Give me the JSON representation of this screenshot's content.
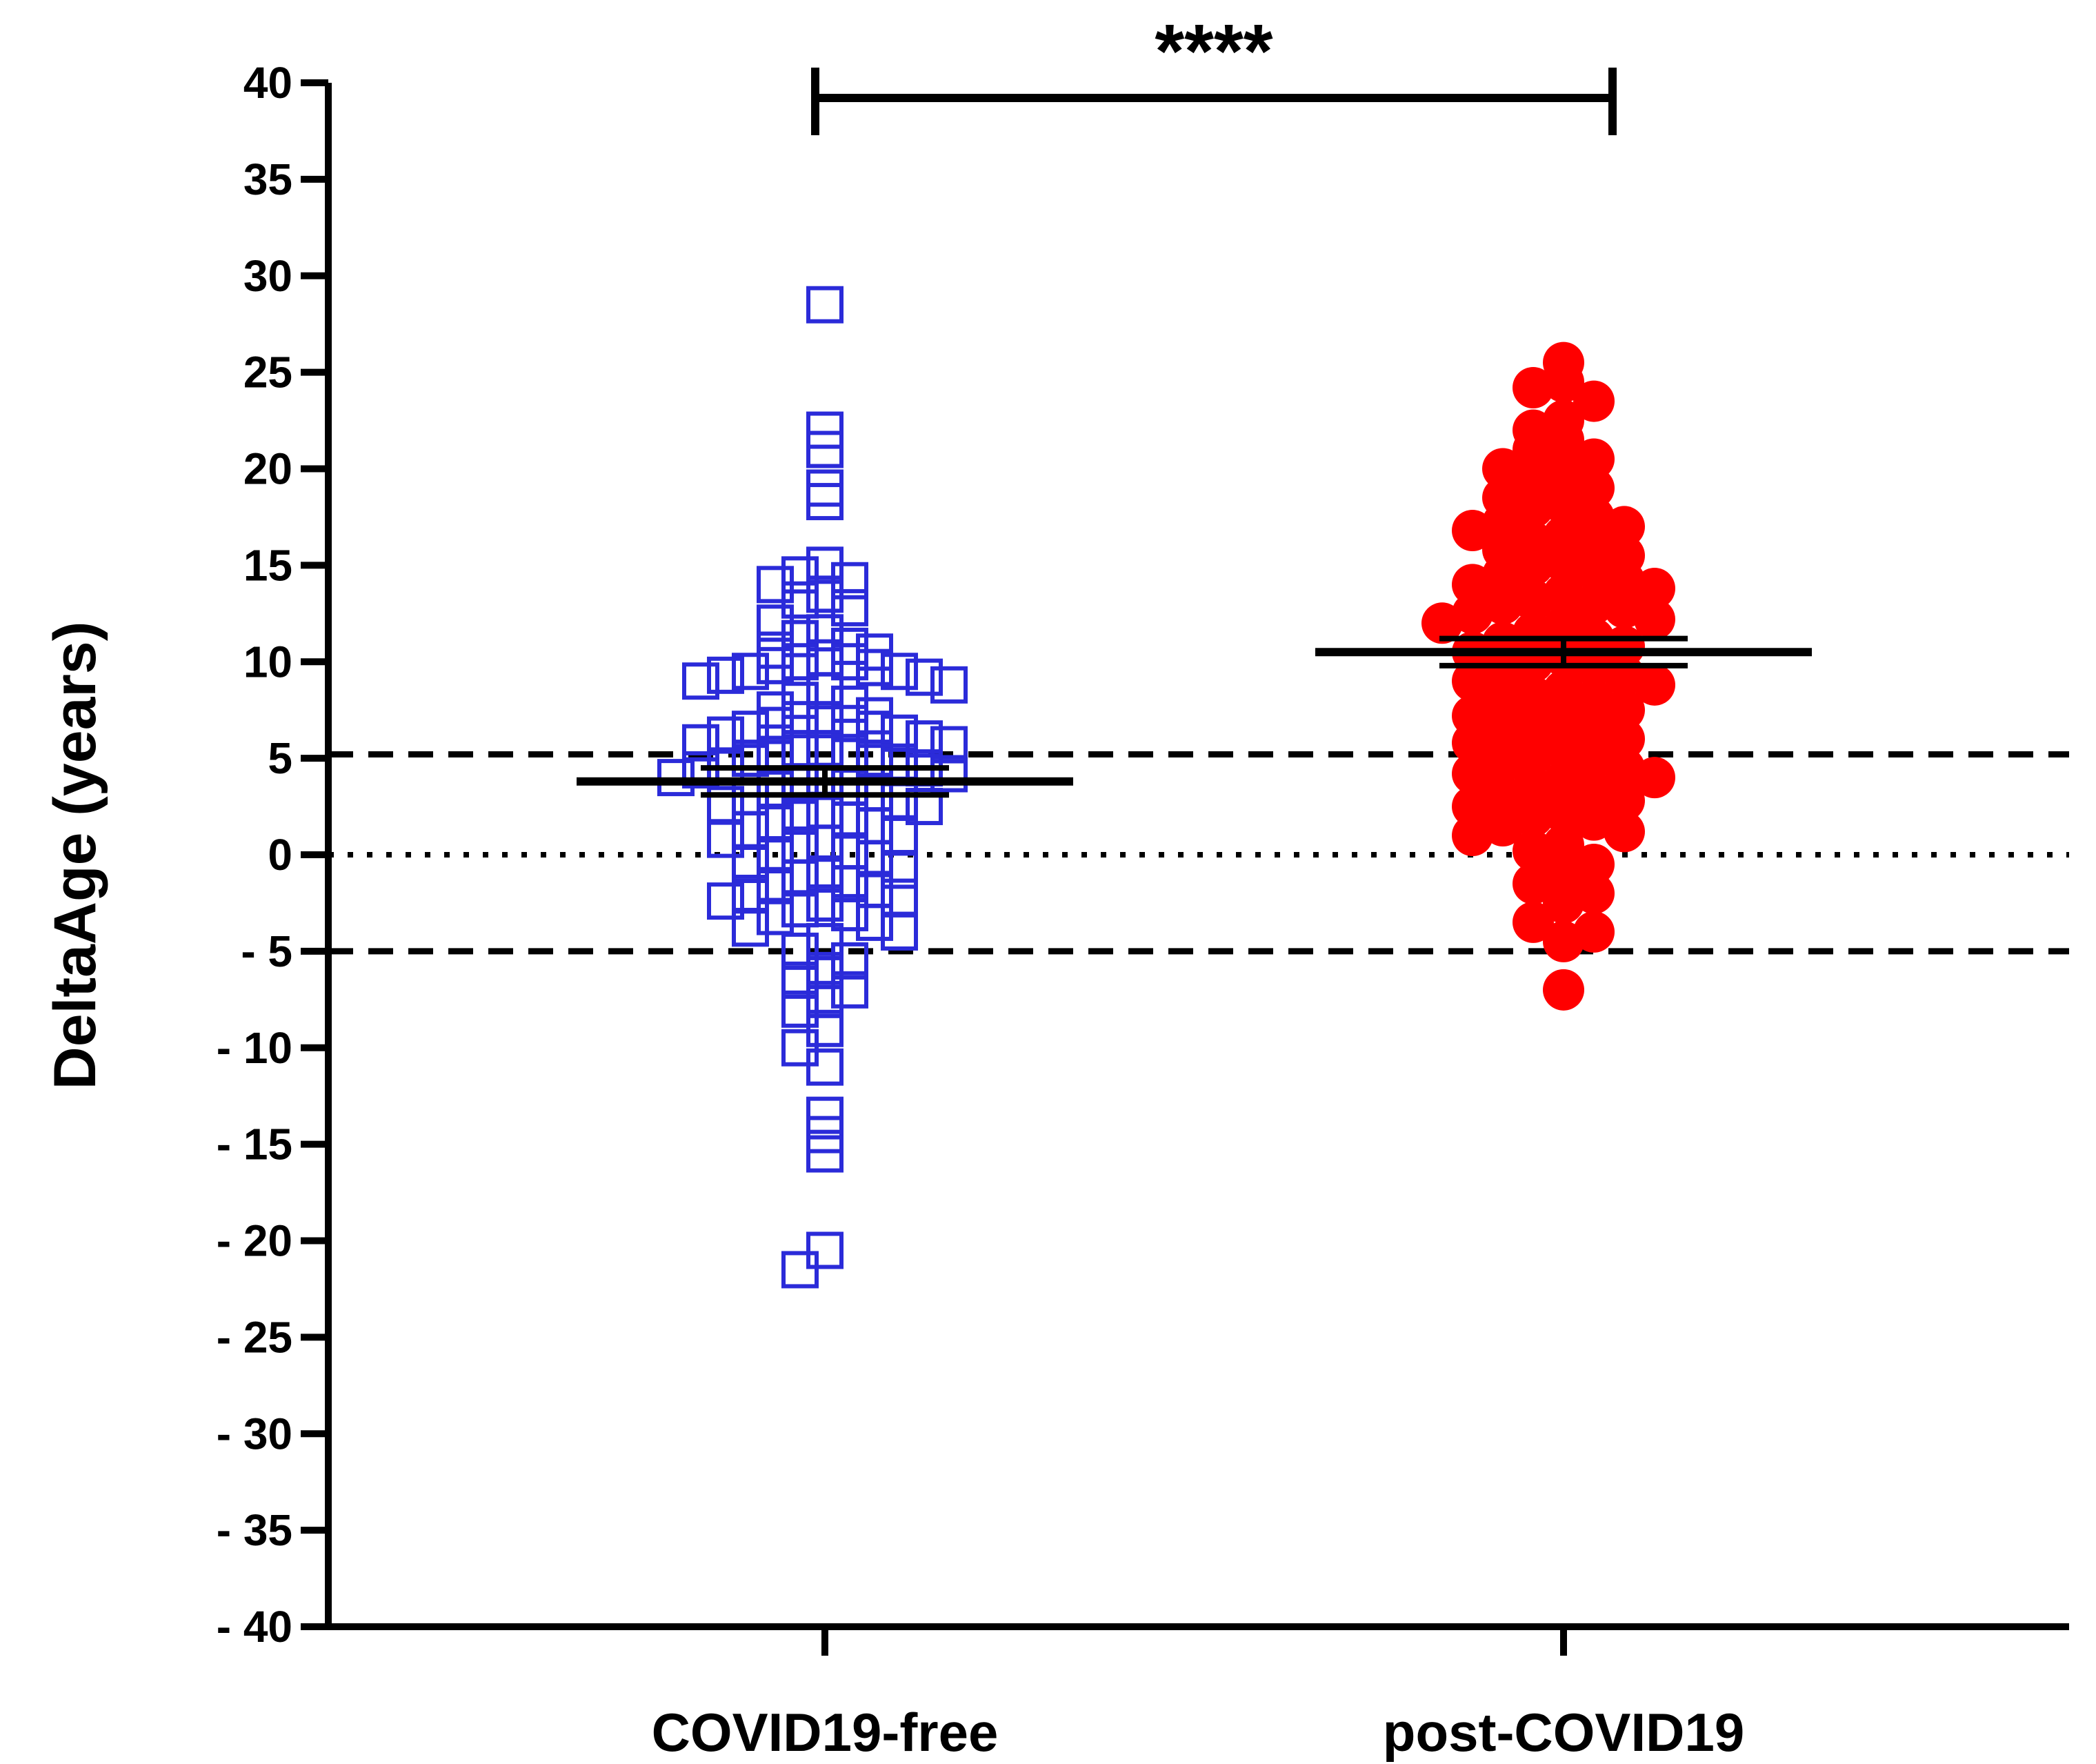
{
  "chart_data": {
    "type": "scatter",
    "subtype": "dot-plot with mean and SEM",
    "ylabel": "DeltaAge (years)",
    "ylim": [
      -40,
      40
    ],
    "yticks": [
      40,
      35,
      30,
      25,
      20,
      15,
      10,
      5,
      0,
      -5,
      -10,
      -15,
      -20,
      -25,
      -30,
      -35,
      -40
    ],
    "ytick_labels": [
      "40",
      "35",
      "30",
      "25",
      "20",
      "15",
      "10",
      "5",
      "0",
      "- 5",
      "- 10",
      "- 15",
      "- 20",
      "- 25",
      "- 30",
      "- 35",
      "- 40"
    ],
    "categories": [
      "COVID19-free",
      "post-COVID19"
    ],
    "significance": "****",
    "reference_lines": [
      {
        "y": 5.2,
        "style": "dashed"
      },
      {
        "y": 0,
        "style": "dotted"
      },
      {
        "y": -5,
        "style": "dashed"
      }
    ],
    "series": [
      {
        "category": "COVID19-free",
        "marker": "open-square",
        "color": "#2b2bd9",
        "mean": 3.8,
        "sem": 0.7,
        "values": [
          28.5,
          22.0,
          21.0,
          19.0,
          18.3,
          15.0,
          14.5,
          14.0,
          14.2,
          13.5,
          13.2,
          12.8,
          12.0,
          11.5,
          11.2,
          10.8,
          10.5,
          10.6,
          10.2,
          10.0,
          10.0,
          9.8,
          9.7,
          9.5,
          9.5,
          9.3,
          9.0,
          9.2,
          8.8,
          8.5,
          8.0,
          7.8,
          7.5,
          7.2,
          7.0,
          7.0,
          6.8,
          6.7,
          6.5,
          6.5,
          6.3,
          6.2,
          6.0,
          5.8,
          5.7,
          5.5,
          5.5,
          5.3,
          5.2,
          5.0,
          5.0,
          4.8,
          4.6,
          4.5,
          4.4,
          4.2,
          4.0,
          3.8,
          3.6,
          3.5,
          3.4,
          3.2,
          3.0,
          2.8,
          2.6,
          2.5,
          2.3,
          2.0,
          1.8,
          1.6,
          1.5,
          1.3,
          1.0,
          0.8,
          0.6,
          0.5,
          0.2,
          0.0,
          -0.2,
          -0.5,
          -0.8,
          -1.0,
          -1.2,
          -1.5,
          -1.6,
          -1.8,
          -2.0,
          -2.2,
          -2.4,
          -2.5,
          -2.8,
          -3.0,
          -3.2,
          -3.5,
          -3.8,
          -4.0,
          -4.5,
          -5.0,
          -5.5,
          -6.0,
          -6.5,
          -7.0,
          -7.5,
          -8.0,
          -9.0,
          -10.0,
          -11.0,
          -13.5,
          -14.5,
          -15.5,
          -20.5,
          -21.5
        ]
      },
      {
        "category": "post-COVID19",
        "marker": "filled-circle",
        "color": "#ff0000",
        "mean": 10.5,
        "sem": 0.7,
        "values": [
          25.5,
          24.5,
          24.2,
          23.5,
          22.5,
          22.0,
          21.5,
          21.0,
          20.5,
          20.0,
          19.8,
          19.5,
          19.0,
          18.5,
          18.2,
          18.0,
          17.5,
          17.2,
          17.0,
          16.8,
          16.5,
          16.2,
          16.0,
          15.8,
          15.5,
          15.2,
          15.0,
          14.8,
          14.5,
          14.2,
          14.0,
          13.8,
          13.5,
          13.2,
          13.0,
          13.0,
          12.8,
          12.5,
          12.2,
          12.0,
          11.8,
          11.5,
          11.2,
          11.0,
          10.8,
          10.5,
          10.3,
          10.0,
          9.8,
          9.5,
          9.3,
          9.0,
          8.8,
          8.5,
          8.2,
          8.0,
          7.8,
          7.5,
          7.2,
          7.0,
          6.8,
          6.5,
          6.2,
          6.0,
          5.8,
          5.5,
          5.2,
          5.0,
          4.8,
          4.5,
          4.2,
          4.0,
          3.8,
          3.5,
          3.2,
          3.0,
          2.8,
          2.5,
          2.2,
          2.0,
          1.8,
          1.5,
          1.2,
          1.0,
          0.5,
          0.2,
          -0.5,
          -1.0,
          -1.5,
          -2.0,
          -2.5,
          -3.5,
          -4.0,
          -4.5,
          -7.0
        ]
      }
    ]
  }
}
